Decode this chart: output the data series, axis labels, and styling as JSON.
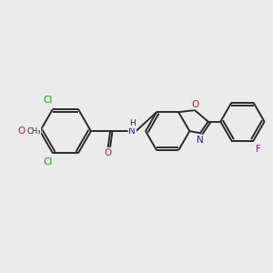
{
  "bg_color": "#ebebeb",
  "bond_color": "#2a2a2a",
  "bond_width": 1.4,
  "atom_colors": {
    "N": "#2020cc",
    "O": "#cc2020",
    "Cl": "#00aa00",
    "F": "#cc00cc"
  },
  "font_size": 7.5,
  "fig_width": 3.0,
  "fig_height": 3.0,
  "dpi": 100
}
